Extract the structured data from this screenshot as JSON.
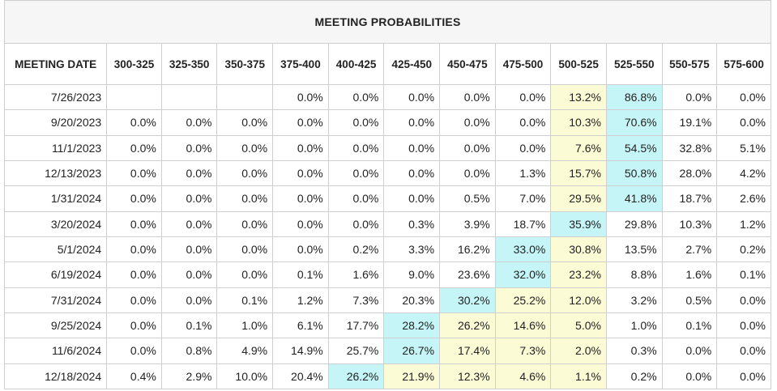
{
  "title": "MEETING PROBABILITIES",
  "columns": [
    "MEETING DATE",
    "300-325",
    "325-350",
    "350-375",
    "375-400",
    "400-425",
    "425-450",
    "450-475",
    "475-500",
    "500-525",
    "525-550",
    "550-575",
    "575-600"
  ],
  "highlight_colors": {
    "max": "#c5f5f7",
    "second": "#fbfbd6"
  },
  "rows": [
    {
      "date": "7/26/2023",
      "cells": [
        "",
        "",
        "",
        "0.0%",
        "0.0%",
        "0.0%",
        "0.0%",
        "0.0%",
        "13.2%",
        "86.8%",
        "0.0%",
        "0.0%"
      ],
      "hl": [
        "",
        "",
        "",
        "",
        "",
        "",
        "",
        "",
        "y",
        "b",
        "",
        ""
      ]
    },
    {
      "date": "9/20/2023",
      "cells": [
        "0.0%",
        "0.0%",
        "0.0%",
        "0.0%",
        "0.0%",
        "0.0%",
        "0.0%",
        "0.0%",
        "10.3%",
        "70.6%",
        "19.1%",
        "0.0%"
      ],
      "hl": [
        "",
        "",
        "",
        "",
        "",
        "",
        "",
        "",
        "y",
        "b",
        "",
        ""
      ]
    },
    {
      "date": "11/1/2023",
      "cells": [
        "0.0%",
        "0.0%",
        "0.0%",
        "0.0%",
        "0.0%",
        "0.0%",
        "0.0%",
        "0.0%",
        "7.6%",
        "54.5%",
        "32.8%",
        "5.1%"
      ],
      "hl": [
        "",
        "",
        "",
        "",
        "",
        "",
        "",
        "",
        "y",
        "b",
        "",
        ""
      ]
    },
    {
      "date": "12/13/2023",
      "cells": [
        "0.0%",
        "0.0%",
        "0.0%",
        "0.0%",
        "0.0%",
        "0.0%",
        "0.0%",
        "1.3%",
        "15.7%",
        "50.8%",
        "28.0%",
        "4.2%"
      ],
      "hl": [
        "",
        "",
        "",
        "",
        "",
        "",
        "",
        "",
        "y",
        "b",
        "",
        ""
      ]
    },
    {
      "date": "1/31/2024",
      "cells": [
        "0.0%",
        "0.0%",
        "0.0%",
        "0.0%",
        "0.0%",
        "0.0%",
        "0.5%",
        "7.0%",
        "29.5%",
        "41.8%",
        "18.7%",
        "2.6%"
      ],
      "hl": [
        "",
        "",
        "",
        "",
        "",
        "",
        "",
        "",
        "y",
        "b",
        "",
        ""
      ]
    },
    {
      "date": "3/20/2024",
      "cells": [
        "0.0%",
        "0.0%",
        "0.0%",
        "0.0%",
        "0.0%",
        "0.3%",
        "3.9%",
        "18.7%",
        "35.9%",
        "29.8%",
        "10.3%",
        "1.2%"
      ],
      "hl": [
        "",
        "",
        "",
        "",
        "",
        "",
        "",
        "",
        "b",
        "",
        "",
        ""
      ]
    },
    {
      "date": "5/1/2024",
      "cells": [
        "0.0%",
        "0.0%",
        "0.0%",
        "0.0%",
        "0.2%",
        "3.3%",
        "16.2%",
        "33.0%",
        "30.8%",
        "13.5%",
        "2.7%",
        "0.2%"
      ],
      "hl": [
        "",
        "",
        "",
        "",
        "",
        "",
        "",
        "b",
        "y",
        "",
        "",
        ""
      ]
    },
    {
      "date": "6/19/2024",
      "cells": [
        "0.0%",
        "0.0%",
        "0.0%",
        "0.1%",
        "1.6%",
        "9.0%",
        "23.6%",
        "32.0%",
        "23.2%",
        "8.8%",
        "1.6%",
        "0.1%"
      ],
      "hl": [
        "",
        "",
        "",
        "",
        "",
        "",
        "",
        "b",
        "y",
        "",
        "",
        ""
      ]
    },
    {
      "date": "7/31/2024",
      "cells": [
        "0.0%",
        "0.0%",
        "0.1%",
        "1.2%",
        "7.3%",
        "20.3%",
        "30.2%",
        "25.2%",
        "12.0%",
        "3.2%",
        "0.5%",
        "0.0%"
      ],
      "hl": [
        "",
        "",
        "",
        "",
        "",
        "",
        "b",
        "y",
        "y",
        "",
        "",
        ""
      ]
    },
    {
      "date": "9/25/2024",
      "cells": [
        "0.0%",
        "0.1%",
        "1.0%",
        "6.1%",
        "17.7%",
        "28.2%",
        "26.2%",
        "14.6%",
        "5.0%",
        "1.0%",
        "0.1%",
        "0.0%"
      ],
      "hl": [
        "",
        "",
        "",
        "",
        "",
        "b",
        "y",
        "y",
        "y",
        "",
        "",
        ""
      ]
    },
    {
      "date": "11/6/2024",
      "cells": [
        "0.0%",
        "0.8%",
        "4.9%",
        "14.9%",
        "25.7%",
        "26.7%",
        "17.4%",
        "7.3%",
        "2.0%",
        "0.3%",
        "0.0%",
        "0.0%"
      ],
      "hl": [
        "",
        "",
        "",
        "",
        "",
        "b",
        "y",
        "y",
        "y",
        "",
        "",
        ""
      ]
    },
    {
      "date": "12/18/2024",
      "cells": [
        "0.4%",
        "2.9%",
        "10.0%",
        "20.4%",
        "26.2%",
        "21.9%",
        "12.3%",
        "4.6%",
        "1.1%",
        "0.2%",
        "0.0%",
        "0.0%"
      ],
      "hl": [
        "",
        "",
        "",
        "",
        "b",
        "y",
        "y",
        "y",
        "y",
        "",
        "",
        ""
      ]
    }
  ]
}
